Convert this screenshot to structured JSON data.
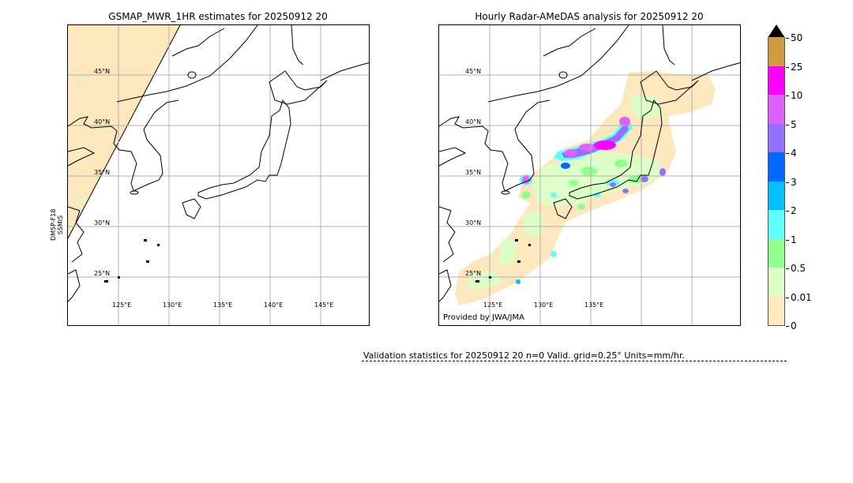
{
  "left_map": {
    "title": "GSMAP_MWR_1HR estimates for 20250912 20",
    "side_label_line1": "DMSP-F18",
    "side_label_line2": "SSMIS",
    "lat_labels": [
      "45°N",
      "40°N",
      "35°N",
      "30°N",
      "25°N"
    ],
    "lon_labels": [
      "125°E",
      "130°E",
      "135°E",
      "140°E",
      "145°E"
    ]
  },
  "right_map": {
    "title": "Hourly Radar-AMeDAS analysis for 20250912 20",
    "lat_labels": [
      "45°N",
      "40°N",
      "35°N",
      "30°N",
      "25°N"
    ],
    "lon_labels": [
      "125°E",
      "130°E",
      "135°E"
    ],
    "credit": "Provided by JWA/JMA"
  },
  "colorbar": {
    "units": "mm/hr",
    "levels": [
      {
        "label": "0",
        "color": "#ffe9c0"
      },
      {
        "label": "0.01",
        "color": "#ffe9c0"
      },
      {
        "label": "0.5",
        "color": "#dcffc8"
      },
      {
        "label": "1",
        "color": "#90ff90"
      },
      {
        "label": "2",
        "color": "#60ffff"
      },
      {
        "label": "3",
        "color": "#00c0ff"
      },
      {
        "label": "4",
        "color": "#0068ff"
      },
      {
        "label": "5",
        "color": "#9370ff"
      },
      {
        "label": "10",
        "color": "#e060ff"
      },
      {
        "label": "25",
        "color": "#ff00ff"
      },
      {
        "label": "50",
        "color": "#d09a40"
      }
    ],
    "extend_color": "#000000"
  },
  "validation": {
    "text": "Validation statistics for 20250912 20  n=0 Valid. grid=0.25° Units=mm/hr."
  },
  "colors": {
    "no_rain_swath": "#fde7bd",
    "gridline": "#b0b0b0",
    "coast": "#000000"
  }
}
